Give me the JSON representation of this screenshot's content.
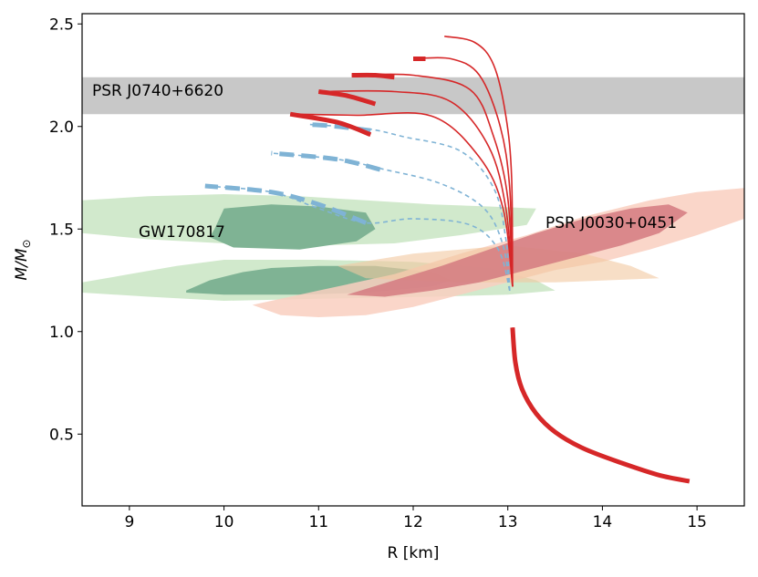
{
  "chart_data": {
    "type": "line",
    "title": "",
    "xlabel": "R [km]",
    "ylabel_main": "M/M",
    "ylabel_sub": "⊙",
    "xlim": [
      8.5,
      15.5
    ],
    "ylim": [
      0.15,
      2.55
    ],
    "xticks": [
      9,
      10,
      11,
      12,
      13,
      14,
      15
    ],
    "yticks": [
      0.5,
      1.0,
      1.5,
      2.0,
      2.5
    ],
    "xtick_labels": [
      "9",
      "10",
      "11",
      "12",
      "13",
      "14",
      "15"
    ],
    "ytick_labels": [
      "0.5",
      "1.0",
      "1.5",
      "2.0",
      "2.5"
    ],
    "colors": {
      "red": "#d62728",
      "blue": "#7fb3d5",
      "band": "#c8c8c8",
      "gw_light": "#cfe8c9",
      "gw_dark": "#7fb394",
      "psr_light": "#f9cfc0",
      "psr_dark": "#d47a80"
    },
    "band": {
      "label": "PSR J0740+6620",
      "y0": 2.06,
      "y1": 2.24
    },
    "annotations": [
      {
        "text": "PSR J0740+6620",
        "x": 8.6,
        "y": 2.15
      },
      {
        "text": "GW170817",
        "x": 9.1,
        "y": 1.47
      },
      {
        "text": "PSR J0030+0451",
        "x": 13.4,
        "y": 1.52
      }
    ],
    "gw_regions": {
      "upper_light": [
        [
          8.5,
          1.64
        ],
        [
          9.2,
          1.66
        ],
        [
          10.0,
          1.67
        ],
        [
          10.8,
          1.66
        ],
        [
          11.5,
          1.64
        ],
        [
          12.2,
          1.62
        ],
        [
          12.8,
          1.61
        ],
        [
          13.3,
          1.6
        ],
        [
          13.2,
          1.52
        ],
        [
          12.5,
          1.47
        ],
        [
          11.8,
          1.43
        ],
        [
          11.0,
          1.42
        ],
        [
          10.0,
          1.43
        ],
        [
          9.2,
          1.45
        ],
        [
          8.5,
          1.48
        ]
      ],
      "upper_dark": [
        [
          9.9,
          1.5
        ],
        [
          10.0,
          1.6
        ],
        [
          10.5,
          1.62
        ],
        [
          11.0,
          1.61
        ],
        [
          11.5,
          1.58
        ],
        [
          11.6,
          1.5
        ],
        [
          11.4,
          1.44
        ],
        [
          10.8,
          1.4
        ],
        [
          10.1,
          1.41
        ],
        [
          9.85,
          1.46
        ]
      ],
      "lower_light": [
        [
          8.5,
          1.24
        ],
        [
          9.0,
          1.28
        ],
        [
          9.5,
          1.32
        ],
        [
          10.0,
          1.35
        ],
        [
          11.0,
          1.35
        ],
        [
          12.0,
          1.34
        ],
        [
          12.8,
          1.31
        ],
        [
          13.3,
          1.25
        ],
        [
          13.5,
          1.2
        ],
        [
          13.0,
          1.18
        ],
        [
          12.2,
          1.17
        ],
        [
          11.0,
          1.16
        ],
        [
          10.0,
          1.15
        ],
        [
          9.2,
          1.17
        ],
        [
          8.5,
          1.19
        ]
      ],
      "lower_dark": [
        [
          9.6,
          1.2
        ],
        [
          9.85,
          1.25
        ],
        [
          10.2,
          1.29
        ],
        [
          10.5,
          1.31
        ],
        [
          11.0,
          1.32
        ],
        [
          11.6,
          1.32
        ],
        [
          12.2,
          1.29
        ],
        [
          12.4,
          1.25
        ],
        [
          12.2,
          1.22
        ],
        [
          11.5,
          1.19
        ],
        [
          10.8,
          1.18
        ],
        [
          10.0,
          1.18
        ],
        [
          9.6,
          1.19
        ]
      ]
    },
    "psr_regions": {
      "light": [
        [
          10.3,
          1.13
        ],
        [
          11.0,
          1.2
        ],
        [
          11.8,
          1.28
        ],
        [
          12.5,
          1.38
        ],
        [
          13.2,
          1.47
        ],
        [
          13.8,
          1.56
        ],
        [
          14.5,
          1.64
        ],
        [
          15.0,
          1.68
        ],
        [
          15.5,
          1.7
        ],
        [
          15.5,
          1.55
        ],
        [
          15.0,
          1.47
        ],
        [
          14.5,
          1.4
        ],
        [
          14.0,
          1.34
        ],
        [
          13.5,
          1.3
        ],
        [
          13.0,
          1.24
        ],
        [
          12.5,
          1.18
        ],
        [
          12.0,
          1.12
        ],
        [
          11.5,
          1.08
        ],
        [
          11.0,
          1.07
        ],
        [
          10.6,
          1.08
        ]
      ],
      "dark": [
        [
          11.3,
          1.18
        ],
        [
          11.8,
          1.25
        ],
        [
          12.3,
          1.32
        ],
        [
          12.8,
          1.4
        ],
        [
          13.3,
          1.48
        ],
        [
          13.8,
          1.55
        ],
        [
          14.3,
          1.6
        ],
        [
          14.7,
          1.62
        ],
        [
          14.9,
          1.58
        ],
        [
          14.6,
          1.48
        ],
        [
          14.2,
          1.42
        ],
        [
          13.7,
          1.36
        ],
        [
          13.2,
          1.3
        ],
        [
          12.7,
          1.24
        ],
        [
          12.2,
          1.2
        ],
        [
          11.7,
          1.17
        ]
      ],
      "peach": [
        [
          11.2,
          1.32
        ],
        [
          12.0,
          1.38
        ],
        [
          13.0,
          1.42
        ],
        [
          13.8,
          1.38
        ],
        [
          14.3,
          1.32
        ],
        [
          14.6,
          1.26
        ],
        [
          13.5,
          1.24
        ],
        [
          12.5,
          1.24
        ],
        [
          11.5,
          1.26
        ]
      ]
    },
    "red_tail": {
      "color": "#d62728",
      "points": [
        [
          13.05,
          1.02
        ],
        [
          13.08,
          0.85
        ],
        [
          13.15,
          0.72
        ],
        [
          13.3,
          0.6
        ],
        [
          13.5,
          0.51
        ],
        [
          13.8,
          0.43
        ],
        [
          14.2,
          0.36
        ],
        [
          14.6,
          0.3
        ],
        [
          14.92,
          0.27
        ]
      ]
    },
    "red_curves": [
      {
        "name": "red-curve-1",
        "points": [
          [
            13.05,
            1.22
          ],
          [
            12.95,
            1.6
          ],
          [
            12.7,
            1.85
          ],
          [
            12.2,
            2.05
          ],
          [
            11.4,
            2.055
          ],
          [
            10.7,
            2.06
          ]
        ]
      },
      {
        "name": "red-curve-2",
        "points": [
          [
            13.05,
            1.22
          ],
          [
            12.98,
            1.6
          ],
          [
            12.8,
            1.9
          ],
          [
            12.4,
            2.12
          ],
          [
            11.8,
            2.17
          ],
          [
            11.0,
            2.17
          ]
        ]
      },
      {
        "name": "red-curve-3",
        "points": [
          [
            13.05,
            1.22
          ],
          [
            13.0,
            1.65
          ],
          [
            12.85,
            1.95
          ],
          [
            12.6,
            2.18
          ],
          [
            12.0,
            2.25
          ],
          [
            11.35,
            2.25
          ]
        ]
      },
      {
        "name": "red-curve-4",
        "points": [
          [
            13.05,
            1.22
          ],
          [
            13.02,
            1.7
          ],
          [
            12.92,
            2.0
          ],
          [
            12.7,
            2.25
          ],
          [
            12.4,
            2.33
          ],
          [
            12.0,
            2.33
          ]
        ]
      },
      {
        "name": "red-curve-5",
        "points": [
          [
            13.05,
            1.22
          ],
          [
            13.04,
            1.75
          ],
          [
            12.98,
            2.05
          ],
          [
            12.85,
            2.3
          ],
          [
            12.65,
            2.41
          ],
          [
            12.33,
            2.44
          ]
        ]
      }
    ],
    "red_thick_segments": [
      {
        "name": "red-thick-1",
        "points": [
          [
            11.55,
            1.96
          ],
          [
            11.2,
            2.02
          ],
          [
            10.7,
            2.06
          ]
        ]
      },
      {
        "name": "red-thick-2",
        "points": [
          [
            11.6,
            2.11
          ],
          [
            11.3,
            2.15
          ],
          [
            11.0,
            2.17
          ]
        ]
      },
      {
        "name": "red-thick-3",
        "points": [
          [
            11.8,
            2.24
          ],
          [
            11.6,
            2.25
          ],
          [
            11.35,
            2.25
          ]
        ]
      },
      {
        "name": "red-thick-4",
        "points": [
          [
            12.13,
            2.33
          ],
          [
            12.0,
            2.33
          ]
        ]
      },
      {
        "name": "red-thick-tail",
        "points": [
          [
            13.05,
            1.02
          ],
          [
            13.08,
            0.85
          ],
          [
            13.15,
            0.72
          ],
          [
            13.3,
            0.6
          ],
          [
            13.5,
            0.51
          ],
          [
            13.8,
            0.43
          ],
          [
            14.2,
            0.36
          ],
          [
            14.6,
            0.3
          ],
          [
            14.92,
            0.27
          ]
        ]
      }
    ],
    "blue_curves": [
      {
        "name": "blue-curve-1",
        "points": [
          [
            13.02,
            1.2
          ],
          [
            12.9,
            1.4
          ],
          [
            12.6,
            1.52
          ],
          [
            12.0,
            1.55
          ],
          [
            11.5,
            1.53
          ],
          [
            11.0,
            1.6
          ],
          [
            10.5,
            1.68
          ],
          [
            9.8,
            1.71
          ]
        ]
      },
      {
        "name": "blue-curve-2",
        "points": [
          [
            13.02,
            1.2
          ],
          [
            12.95,
            1.42
          ],
          [
            12.75,
            1.6
          ],
          [
            12.3,
            1.72
          ],
          [
            11.7,
            1.79
          ],
          [
            11.2,
            1.84
          ],
          [
            10.5,
            1.87
          ]
        ]
      },
      {
        "name": "blue-curve-3",
        "points": [
          [
            13.02,
            1.2
          ],
          [
            12.98,
            1.45
          ],
          [
            12.85,
            1.7
          ],
          [
            12.5,
            1.88
          ],
          [
            11.9,
            1.95
          ],
          [
            11.5,
            1.99
          ],
          [
            10.9,
            2.01
          ]
        ]
      }
    ],
    "blue_thick_segments": [
      {
        "name": "blue-thick-1",
        "points": [
          [
            11.5,
            1.53
          ],
          [
            11.0,
            1.62
          ],
          [
            10.5,
            1.68
          ],
          [
            9.8,
            1.71
          ]
        ]
      },
      {
        "name": "blue-thick-2",
        "points": [
          [
            11.65,
            1.79
          ],
          [
            11.2,
            1.84
          ],
          [
            10.5,
            1.87
          ]
        ]
      },
      {
        "name": "blue-thick-3",
        "points": [
          [
            11.55,
            1.98
          ],
          [
            11.2,
            2.0
          ],
          [
            10.9,
            2.01
          ]
        ]
      }
    ]
  }
}
